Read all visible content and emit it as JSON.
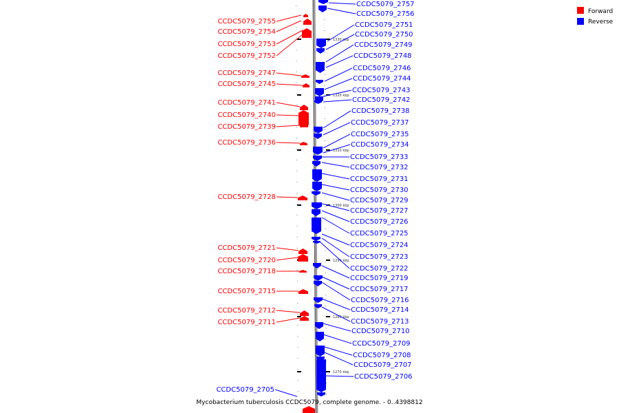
{
  "caption": "Mycobacterium tuberculosis CCDC5079, complete genome. - 0..4398812",
  "legend": [
    {
      "label": "Forward",
      "color": "#ff0000"
    },
    {
      "label": "Reverse",
      "color": "#0000ff"
    }
  ],
  "colors": {
    "forward": "#ff0000",
    "reverse": "#0000ff",
    "backbone": "#999999"
  },
  "scale_ticks": [
    "1330 kbp",
    "1320 kbp",
    "1310 kbp",
    "1300 kbp",
    "1290 kbp",
    "1280 kbp",
    "1270 kbp"
  ],
  "forward_labels": [
    "CCDC5079_2755",
    "CCDC5079_2754",
    "CCDC5079_2753",
    "CCDC5079_2752",
    "CCDC5079_2747",
    "CCDC5079_2745",
    "CCDC5079_2741",
    "CCDC5079_2740",
    "CCDC5079_2739",
    "CCDC5079_2736",
    "CCDC5079_2728",
    "CCDC5079_2721",
    "CCDC5079_2720",
    "CCDC5079_2718",
    "CCDC5079_2715",
    "CCDC5079_2712",
    "CCDC5079_2711"
  ],
  "reverse_labels": [
    "CCDC5079_2757",
    "CCDC5079_2756",
    "CCDC5079_2751",
    "CCDC5079_2750",
    "CCDC5079_2749",
    "CCDC5079_2748",
    "CCDC5079_2746",
    "CCDC5079_2744",
    "CCDC5079_2743",
    "CCDC5079_2742",
    "CCDC5079_2738",
    "CCDC5079_2737",
    "CCDC5079_2735",
    "CCDC5079_2734",
    "CCDC5079_2733",
    "CCDC5079_2732",
    "CCDC5079_2731",
    "CCDC5079_2730",
    "CCDC5079_2729",
    "CCDC5079_2727",
    "CCDC5079_2726",
    "CCDC5079_2725",
    "CCDC5079_2724",
    "CCDC5079_2723",
    "CCDC5079_2722",
    "CCDC5079_2719",
    "CCDC5079_2717",
    "CCDC5079_2716",
    "CCDC5079_2714",
    "CCDC5079_2713",
    "CCDC5079_2710",
    "CCDC5079_2709",
    "CCDC5079_2708",
    "CCDC5079_2707",
    "CCDC5079_2706",
    "CCDC5079_2705"
  ]
}
